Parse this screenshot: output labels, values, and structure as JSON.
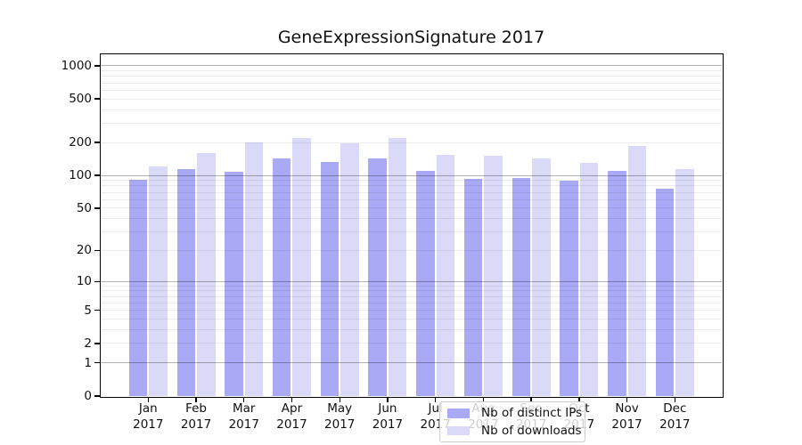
{
  "chart_data": {
    "type": "bar",
    "title": "GeneExpressionSignature 2017",
    "categories": [
      "Jan",
      "Feb",
      "Mar",
      "Apr",
      "May",
      "Jun",
      "Jul",
      "Aug",
      "Sep",
      "Oct",
      "Nov",
      "Dec"
    ],
    "category_year": "2017",
    "series": [
      {
        "name": "Nb of distinct IPs",
        "color": "#a9a9f6",
        "values": [
          91,
          114,
          109,
          144,
          132,
          144,
          110,
          93,
          94,
          89,
          110,
          76
        ]
      },
      {
        "name": "Nb of downloads",
        "color": "#dadaf8",
        "values": [
          121,
          160,
          200,
          221,
          196,
          221,
          154,
          151,
          143,
          131,
          185,
          114
        ]
      }
    ],
    "y_axis": {
      "scale": "log1p",
      "tick_labels": [
        0,
        1,
        2,
        5,
        10,
        20,
        50,
        100,
        200,
        500,
        1000
      ],
      "major_gridlines": [
        1,
        10,
        100,
        1000
      ],
      "minor_gridlines": [
        2,
        3,
        4,
        5,
        6,
        7,
        8,
        9,
        20,
        30,
        40,
        50,
        60,
        70,
        80,
        90,
        200,
        300,
        400,
        500,
        600,
        700,
        800,
        900
      ],
      "ylim": [
        0,
        1275
      ]
    },
    "grid": "horizontal, drawn over bars",
    "legend": {
      "items": [
        "Nb of distinct IPs",
        "Nb of downloads"
      ],
      "position": "inside lower center"
    },
    "colors": {
      "background": "#ffffff",
      "spine": "#000000",
      "major_grid": "#b3b3b3",
      "minor_grid": "#ececec",
      "text": "#111111"
    }
  }
}
